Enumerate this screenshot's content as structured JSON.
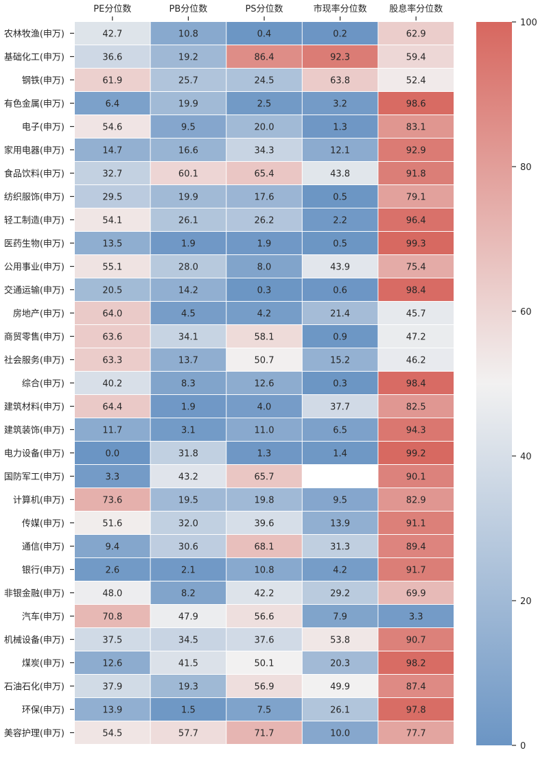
{
  "chart_data": {
    "type": "heatmap",
    "title": "",
    "xlabel": "",
    "ylabel": "",
    "columns": [
      "PE分位数",
      "PB分位数",
      "PS分位数",
      "市现率分位数",
      "股息率分位数"
    ],
    "rows": [
      "农林牧渔(申万)",
      "基础化工(申万)",
      "钢铁(申万)",
      "有色金属(申万)",
      "电子(申万)",
      "家用电器(申万)",
      "食品饮料(申万)",
      "纺织服饰(申万)",
      "轻工制造(申万)",
      "医药生物(申万)",
      "公用事业(申万)",
      "交通运输(申万)",
      "房地产(申万)",
      "商贸零售(申万)",
      "社会服务(申万)",
      "综合(申万)",
      "建筑材料(申万)",
      "建筑装饰(申万)",
      "电力设备(申万)",
      "国防军工(申万)",
      "计算机(申万)",
      "传媒(申万)",
      "通信(申万)",
      "银行(申万)",
      "非银金融(申万)",
      "汽车(申万)",
      "机械设备(申万)",
      "煤炭(申万)",
      "石油石化(申万)",
      "环保(申万)",
      "美容护理(申万)"
    ],
    "values": [
      [
        42.7,
        10.8,
        0.4,
        0.2,
        62.9
      ],
      [
        36.6,
        19.2,
        86.4,
        92.3,
        59.4
      ],
      [
        61.9,
        25.7,
        24.5,
        63.8,
        52.4
      ],
      [
        6.4,
        19.9,
        2.5,
        3.2,
        98.6
      ],
      [
        54.6,
        9.5,
        20.0,
        1.3,
        83.1
      ],
      [
        14.7,
        16.6,
        34.3,
        12.1,
        92.9
      ],
      [
        32.7,
        60.1,
        65.4,
        43.8,
        91.8
      ],
      [
        29.5,
        19.9,
        17.6,
        0.5,
        79.1
      ],
      [
        54.1,
        26.1,
        26.2,
        2.2,
        96.4
      ],
      [
        13.5,
        1.9,
        1.9,
        0.5,
        99.3
      ],
      [
        55.1,
        28.0,
        8.0,
        43.9,
        75.4
      ],
      [
        20.5,
        14.2,
        0.3,
        0.6,
        98.4
      ],
      [
        64.0,
        4.5,
        4.2,
        21.4,
        45.7
      ],
      [
        63.6,
        34.1,
        58.1,
        0.9,
        47.2
      ],
      [
        63.3,
        13.7,
        50.7,
        15.2,
        46.2
      ],
      [
        40.2,
        8.3,
        12.6,
        0.3,
        98.4
      ],
      [
        64.4,
        1.9,
        4.0,
        37.7,
        82.5
      ],
      [
        11.7,
        3.1,
        11.0,
        6.5,
        94.3
      ],
      [
        0.0,
        31.8,
        1.3,
        1.4,
        99.2
      ],
      [
        3.3,
        43.2,
        65.7,
        null,
        90.1
      ],
      [
        73.6,
        19.5,
        19.8,
        9.5,
        82.9
      ],
      [
        51.6,
        32.0,
        39.6,
        13.9,
        91.1
      ],
      [
        9.4,
        30.6,
        68.1,
        31.3,
        89.4
      ],
      [
        2.6,
        2.1,
        10.8,
        4.2,
        91.7
      ],
      [
        48.0,
        8.2,
        42.2,
        29.2,
        69.9
      ],
      [
        70.8,
        47.9,
        56.6,
        7.9,
        3.3
      ],
      [
        37.5,
        34.5,
        37.6,
        53.8,
        90.7
      ],
      [
        12.6,
        41.5,
        50.1,
        20.3,
        98.2
      ],
      [
        37.9,
        19.3,
        56.9,
        49.9,
        87.4
      ],
      [
        13.9,
        1.5,
        7.5,
        26.1,
        97.8
      ],
      [
        54.5,
        57.7,
        71.7,
        10.0,
        77.7
      ]
    ],
    "vmin": 0,
    "vmax": 100,
    "colorbar_ticks": [
      0,
      20,
      40,
      60,
      80,
      100
    ],
    "colormap": {
      "low": "#6b95c4",
      "mid": "#f2f1f1",
      "high": "#d7675f"
    },
    "grid": false,
    "colorbar_position": "right"
  }
}
